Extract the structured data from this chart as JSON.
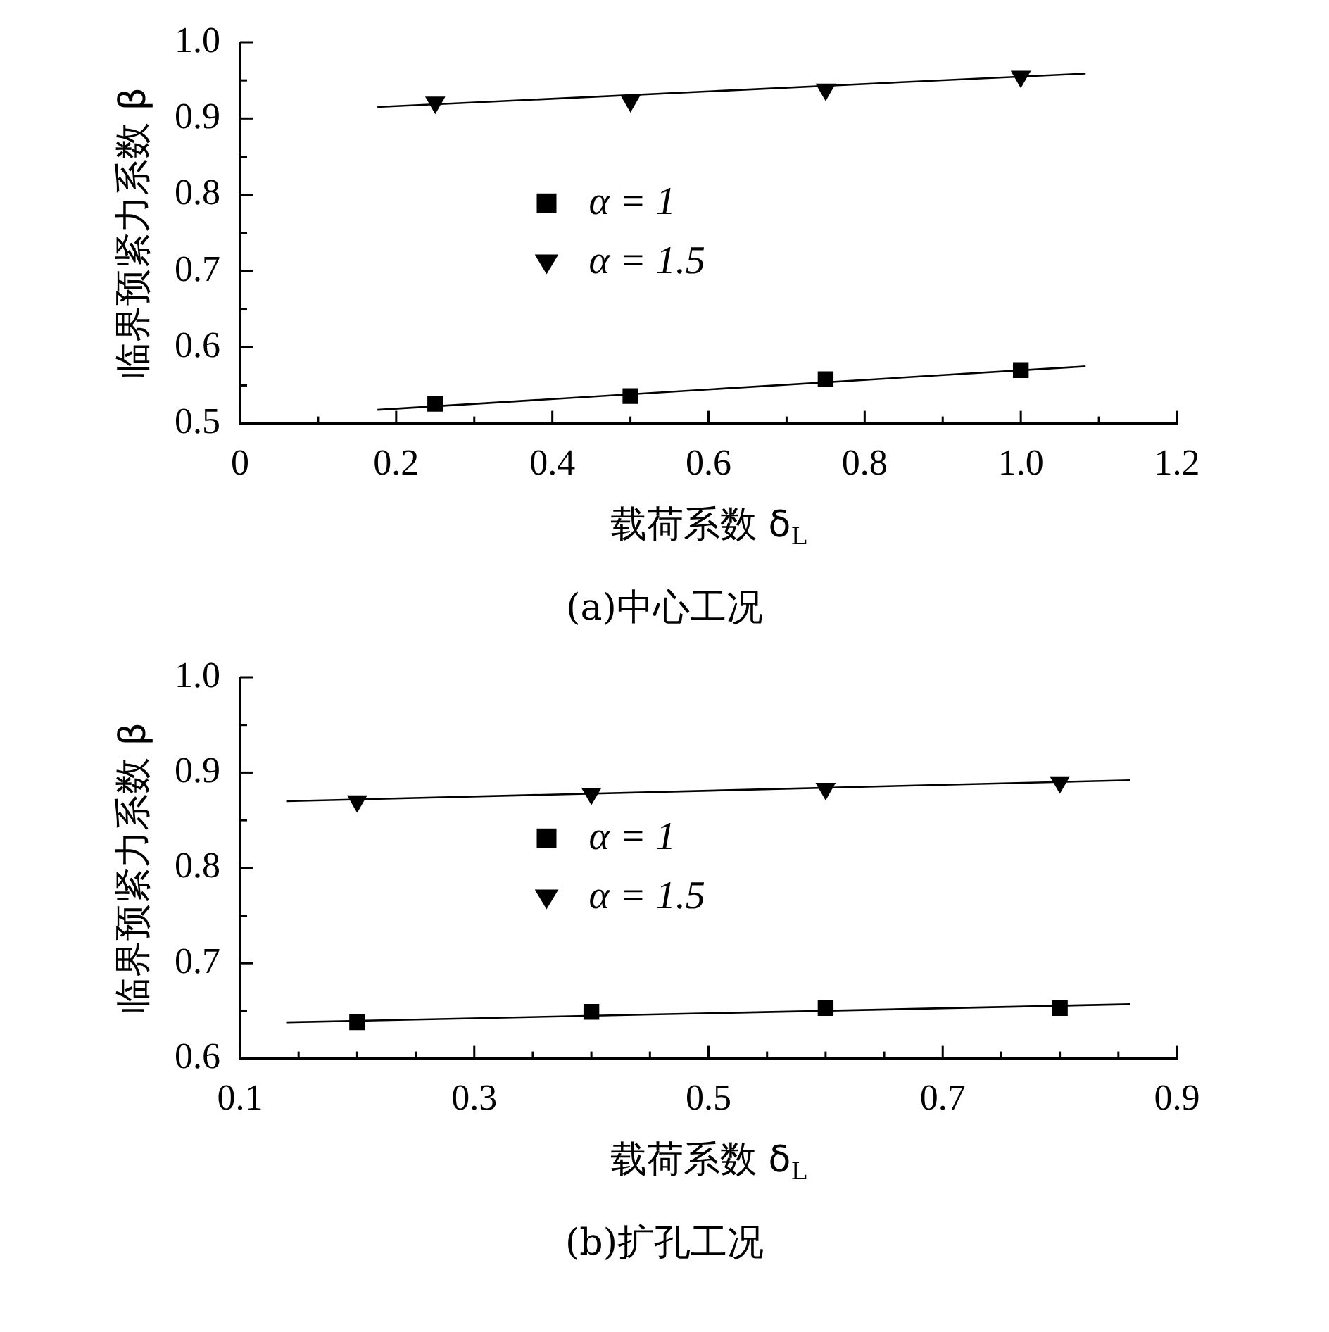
{
  "chart_data": [
    {
      "type": "scatter",
      "xlabel": "载荷系数 δ$_{L}$",
      "ylabel": "临界预紧力系数 β",
      "annotations": [
        "(a)中心工况"
      ],
      "legend": "center",
      "xlim": [
        0,
        1.2
      ],
      "ylim": [
        0.5,
        1.0
      ],
      "xticks": [
        0,
        {
          "value": 0.1,
          "label": null
        },
        0.2,
        {
          "value": 0.3,
          "label": null
        },
        0.4,
        {
          "value": 0.5,
          "label": null
        },
        0.6,
        {
          "value": 0.7,
          "label": null
        },
        0.8,
        {
          "value": 0.9,
          "label": null
        },
        {
          "value": 1,
          "label": "1.0"
        },
        {
          "value": 1.1,
          "label": null
        },
        1.2
      ],
      "yticks": [
        0.5,
        {
          "value": 0.55,
          "label": null
        },
        0.6,
        {
          "value": 0.65,
          "label": null
        },
        0.7,
        {
          "value": 0.75,
          "label": null
        },
        0.8,
        {
          "value": 0.85,
          "label": null
        },
        0.9,
        {
          "value": 0.95,
          "label": null
        },
        {
          "value": 1,
          "label": "1.0"
        }
      ],
      "series": [
        {
          "name": "α = 1",
          "marker": "square",
          "color": "#000000",
          "x": [
            0.25,
            0.5,
            0.75,
            1.0
          ],
          "values": [
            0.526,
            0.536,
            0.558,
            0.57
          ]
        },
        {
          "name": "α = 1.5",
          "marker": "triangle",
          "color": "#000000",
          "x": [
            0.25,
            0.5,
            0.75,
            1.0
          ],
          "values": [
            0.921,
            0.923,
            0.938,
            0.955
          ]
        },
        {
          "type": "line",
          "marker": "none",
          "color": "#000000",
          "x": [
            0.176,
            1.083
          ],
          "values": [
            0.518,
            0.575
          ]
        },
        {
          "type": "line",
          "marker": "none",
          "color": "#000000",
          "x": [
            0.176,
            1.083
          ],
          "values": [
            0.915,
            0.959
          ]
        }
      ]
    },
    {
      "type": "scatter",
      "xlabel": "载荷系数 δ$_{L}$",
      "ylabel": "临界预紧力系数 β",
      "annotations": [
        "(b)扩孔工况"
      ],
      "legend": "center",
      "xlim": [
        0.1,
        0.9
      ],
      "ylim": [
        0.6,
        1.0
      ],
      "xticks": [
        0.1,
        {
          "value": 0.15,
          "label": null
        },
        {
          "value": 0.2,
          "label": null
        },
        {
          "value": 0.25,
          "label": null
        },
        0.3,
        {
          "value": 0.35,
          "label": null
        },
        {
          "value": 0.4,
          "label": null
        },
        {
          "value": 0.45,
          "label": null
        },
        0.5,
        {
          "value": 0.55,
          "label": null
        },
        {
          "value": 0.6,
          "label": null
        },
        {
          "value": 0.65,
          "label": null
        },
        0.7,
        {
          "value": 0.75,
          "label": null
        },
        {
          "value": 0.8,
          "label": null
        },
        {
          "value": 0.85,
          "label": null
        },
        0.9
      ],
      "yticks": [
        0.6,
        {
          "value": 0.65,
          "label": null
        },
        0.7,
        {
          "value": 0.75,
          "label": null
        },
        0.8,
        {
          "value": 0.85,
          "label": null
        },
        0.9,
        {
          "value": 0.95,
          "label": null
        },
        {
          "value": 1,
          "label": "1.0"
        }
      ],
      "series": [
        {
          "name": "α = 1",
          "marker": "square",
          "color": "#000000",
          "x": [
            0.2,
            0.4,
            0.6,
            0.8
          ],
          "values": [
            0.638,
            0.649,
            0.653,
            0.653
          ]
        },
        {
          "name": "α = 1.5",
          "marker": "triangle",
          "color": "#000000",
          "x": [
            0.2,
            0.4,
            0.6,
            0.8
          ],
          "values": [
            0.87,
            0.878,
            0.883,
            0.89
          ]
        },
        {
          "type": "line",
          "marker": "none",
          "color": "#000000",
          "x": [
            0.14,
            0.86
          ],
          "values": [
            0.638,
            0.657
          ]
        },
        {
          "type": "line",
          "marker": "none",
          "color": "#000000",
          "x": [
            0.14,
            0.86
          ],
          "values": [
            0.87,
            0.892
          ]
        }
      ]
    }
  ]
}
